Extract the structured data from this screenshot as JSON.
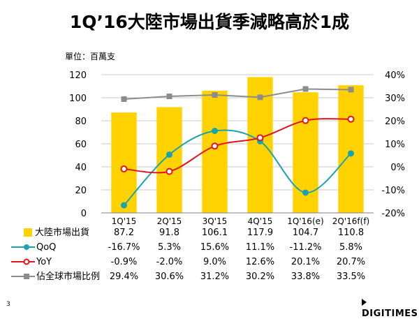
{
  "title": "1Q’16大陸市場出貨季減略高於1成",
  "unit_label": "單位：百萬支",
  "slide_number": "3",
  "brand": "DIGITIMES",
  "colors": {
    "bar": "#FFD200",
    "qoq": "#1AA3AD",
    "yoy": "#E0141E",
    "share": "#8C8C8C",
    "grid": "#C8C8C8",
    "text": "#000000"
  },
  "chart_data": {
    "type": "bar",
    "categories": [
      "1Q'15",
      "2Q'15",
      "3Q'15",
      "4Q'15",
      "1Q'16(e)",
      "2Q'16f(f)"
    ],
    "left_axis": {
      "range": [
        0,
        120
      ],
      "ticks": [
        0,
        20,
        40,
        60,
        80,
        100,
        120
      ],
      "tick_labels": [
        "0",
        "20",
        "40",
        "60",
        "80",
        "100",
        "120"
      ]
    },
    "right_axis": {
      "range": [
        -20,
        40
      ],
      "ticks": [
        -20,
        -10,
        0,
        10,
        20,
        30,
        40
      ],
      "tick_labels": [
        "-20%",
        "-10%",
        "0%",
        "10%",
        "20%",
        "30%",
        "40%"
      ]
    },
    "series": [
      {
        "name": "大陸市場出貨",
        "type": "bar",
        "axis": "left",
        "values": [
          87.2,
          91.8,
          106.1,
          117.9,
          104.7,
          110.8
        ],
        "labels": [
          "87.2",
          "91.8",
          "106.1",
          "117.9",
          "104.7",
          "110.8"
        ]
      },
      {
        "name": "QoQ",
        "type": "line",
        "axis": "right",
        "smooth": true,
        "marker": "filled-circle",
        "values": [
          -16.7,
          5.3,
          15.6,
          11.1,
          -11.2,
          5.8
        ],
        "labels": [
          "-16.7%",
          "5.3%",
          "15.6%",
          "11.1%",
          "-11.2%",
          "5.8%"
        ]
      },
      {
        "name": "YoY",
        "type": "line",
        "axis": "right",
        "smooth": true,
        "marker": "open-circle",
        "values": [
          -0.9,
          -2.0,
          9.0,
          12.6,
          20.1,
          20.7
        ],
        "labels": [
          "-0.9%",
          "-2.0%",
          "9.0%",
          "12.6%",
          "20.1%",
          "20.7%"
        ]
      },
      {
        "name": "佔全球市場比例",
        "type": "line",
        "axis": "right",
        "smooth": false,
        "marker": "square",
        "values": [
          29.4,
          30.6,
          31.2,
          30.2,
          33.8,
          33.5
        ],
        "labels": [
          "29.4%",
          "30.6%",
          "31.2%",
          "30.2%",
          "33.8%",
          "33.5%"
        ]
      }
    ]
  }
}
